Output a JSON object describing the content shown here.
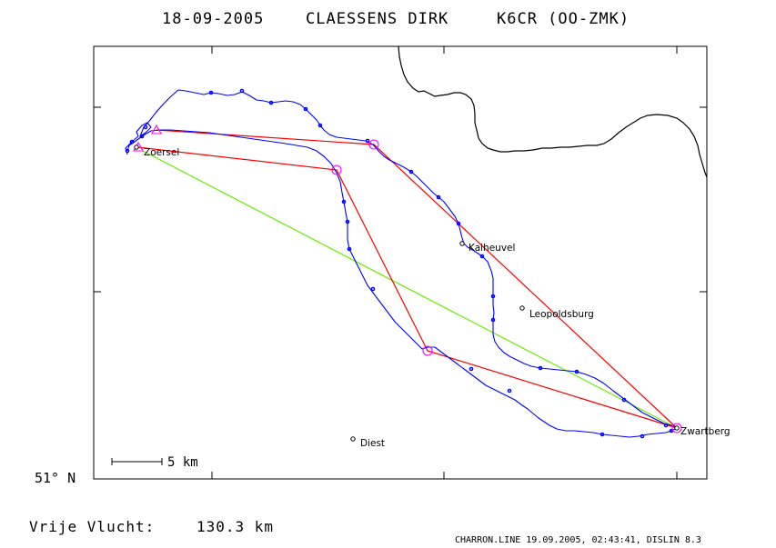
{
  "header": {
    "date": "18-09-2005",
    "pilot": "CLAESSENS DIRK",
    "glider": "K6CR (OO-ZMK)"
  },
  "map": {
    "latitude_label": "51° N",
    "scale_label": "5 km",
    "towns": [
      {
        "name": "Zoersel"
      },
      {
        "name": "Kaiheuvel"
      },
      {
        "name": "Leopoldsburg"
      },
      {
        "name": "Diest"
      },
      {
        "name": "Zwartberg"
      }
    ],
    "colors": {
      "track": "#0000ff",
      "task": "#ff0000",
      "free_flight": "#66ee00",
      "turnpoint": "#ff00ff",
      "border": "#000000"
    }
  },
  "result": {
    "label": "Vrije Vlucht:",
    "distance": "130.3 km"
  },
  "footer": {
    "text": "CHARRON.LINE 19.09.2005, 02:43:41, DISLIN 8.3"
  }
}
